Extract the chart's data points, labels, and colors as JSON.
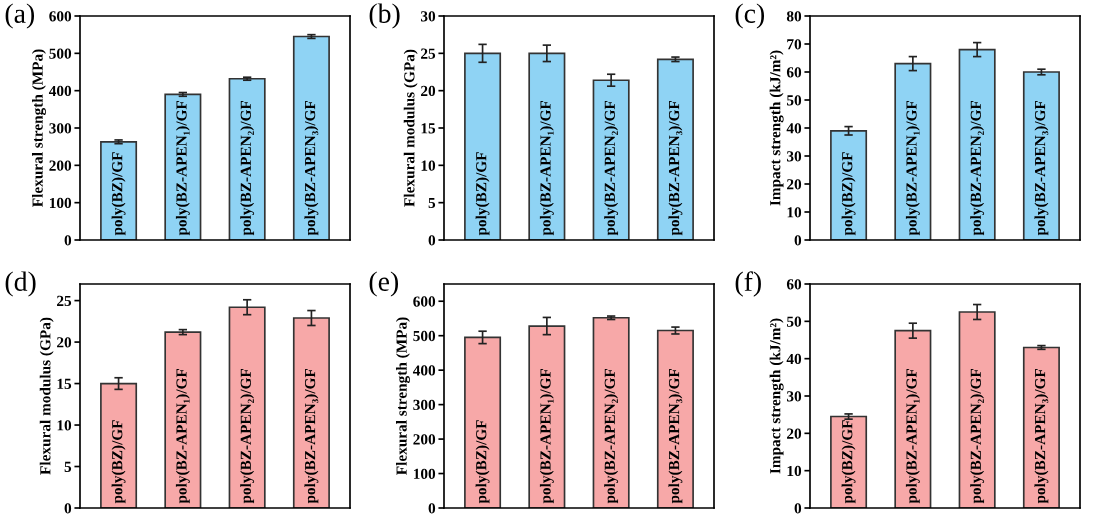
{
  "chart_data": [
    {
      "type": "bar",
      "title": "(a)",
      "ylabel": "Flexural strength (MPa)",
      "categories": [
        "poly(BZ)/GF",
        "poly(BZ-APEN₁)/GF",
        "poly(BZ-APEN₂)/GF",
        "poly(BZ-APEN₃)/GF"
      ],
      "values": [
        263,
        390,
        432,
        545
      ],
      "errors": [
        5,
        5,
        4,
        5
      ],
      "color": "#8fd3f4",
      "ylim": [
        0,
        600
      ],
      "yticks": [
        0,
        100,
        200,
        300,
        400,
        500,
        600
      ]
    },
    {
      "type": "bar",
      "title": "(b)",
      "ylabel": "Flexural modulus (GPa)",
      "categories": [
        "poly(BZ)/GF",
        "poly(BZ-APEN₁)/GF",
        "poly(BZ-APEN₂)/GF",
        "poly(BZ-APEN₃)/GF"
      ],
      "values": [
        25.0,
        25.0,
        21.4,
        24.2
      ],
      "errors": [
        1.2,
        1.1,
        0.8,
        0.3
      ],
      "color": "#8fd3f4",
      "ylim": [
        0,
        30
      ],
      "yticks": [
        0,
        5,
        10,
        15,
        20,
        25,
        30
      ]
    },
    {
      "type": "bar",
      "title": "(c)",
      "ylabel": "Impact strength (kJ/m²)",
      "categories": [
        "poly(BZ)/GF",
        "poly(BZ-APEN₁)/GF",
        "poly(BZ-APEN₂)/GF",
        "poly(BZ-APEN₃)/GF"
      ],
      "values": [
        39,
        63,
        68,
        60
      ],
      "errors": [
        1.5,
        2.5,
        2.5,
        1
      ],
      "color": "#8fd3f4",
      "ylim": [
        0,
        80
      ],
      "yticks": [
        0,
        10,
        20,
        30,
        40,
        50,
        60,
        70,
        80
      ]
    },
    {
      "type": "bar",
      "title": "(d)",
      "ylabel": "Flexural modulus (GPa)",
      "categories": [
        "poly(BZ)/GF",
        "poly(BZ-APEN₁)/GF",
        "poly(BZ-APEN₂)/GF",
        "poly(BZ-APEN₃)/GF"
      ],
      "values": [
        15.0,
        21.2,
        24.2,
        22.9
      ],
      "errors": [
        0.7,
        0.3,
        0.9,
        0.9
      ],
      "color": "#f7a8a8",
      "ylim": [
        0,
        27
      ],
      "yticks": [
        0,
        5,
        10,
        15,
        20,
        25
      ]
    },
    {
      "type": "bar",
      "title": "(e)",
      "ylabel": "Flexural strength (MPa)",
      "categories": [
        "poly(BZ)/GF",
        "poly(BZ-APEN₁)/GF",
        "poly(BZ-APEN₂)/GF",
        "poly(BZ-APEN₃)/GF"
      ],
      "values": [
        495,
        528,
        552,
        515
      ],
      "errors": [
        18,
        25,
        5,
        10
      ],
      "color": "#f7a8a8",
      "ylim": [
        0,
        650
      ],
      "yticks": [
        0,
        100,
        200,
        300,
        400,
        500,
        600
      ]
    },
    {
      "type": "bar",
      "title": "(f)",
      "ylabel": "Impact strength (kJ/m²)",
      "categories": [
        "poly(BZ)/GF",
        "poly(BZ-APEN₁)/GF",
        "poly(BZ-APEN₂)/GF",
        "poly(BZ-APEN₃)/GF"
      ],
      "values": [
        24.5,
        47.5,
        52.5,
        43
      ],
      "errors": [
        0.7,
        2,
        2,
        0.5
      ],
      "color": "#f7a8a8",
      "ylim": [
        0,
        60
      ],
      "yticks": [
        0,
        10,
        20,
        30,
        40,
        50,
        60
      ]
    }
  ]
}
